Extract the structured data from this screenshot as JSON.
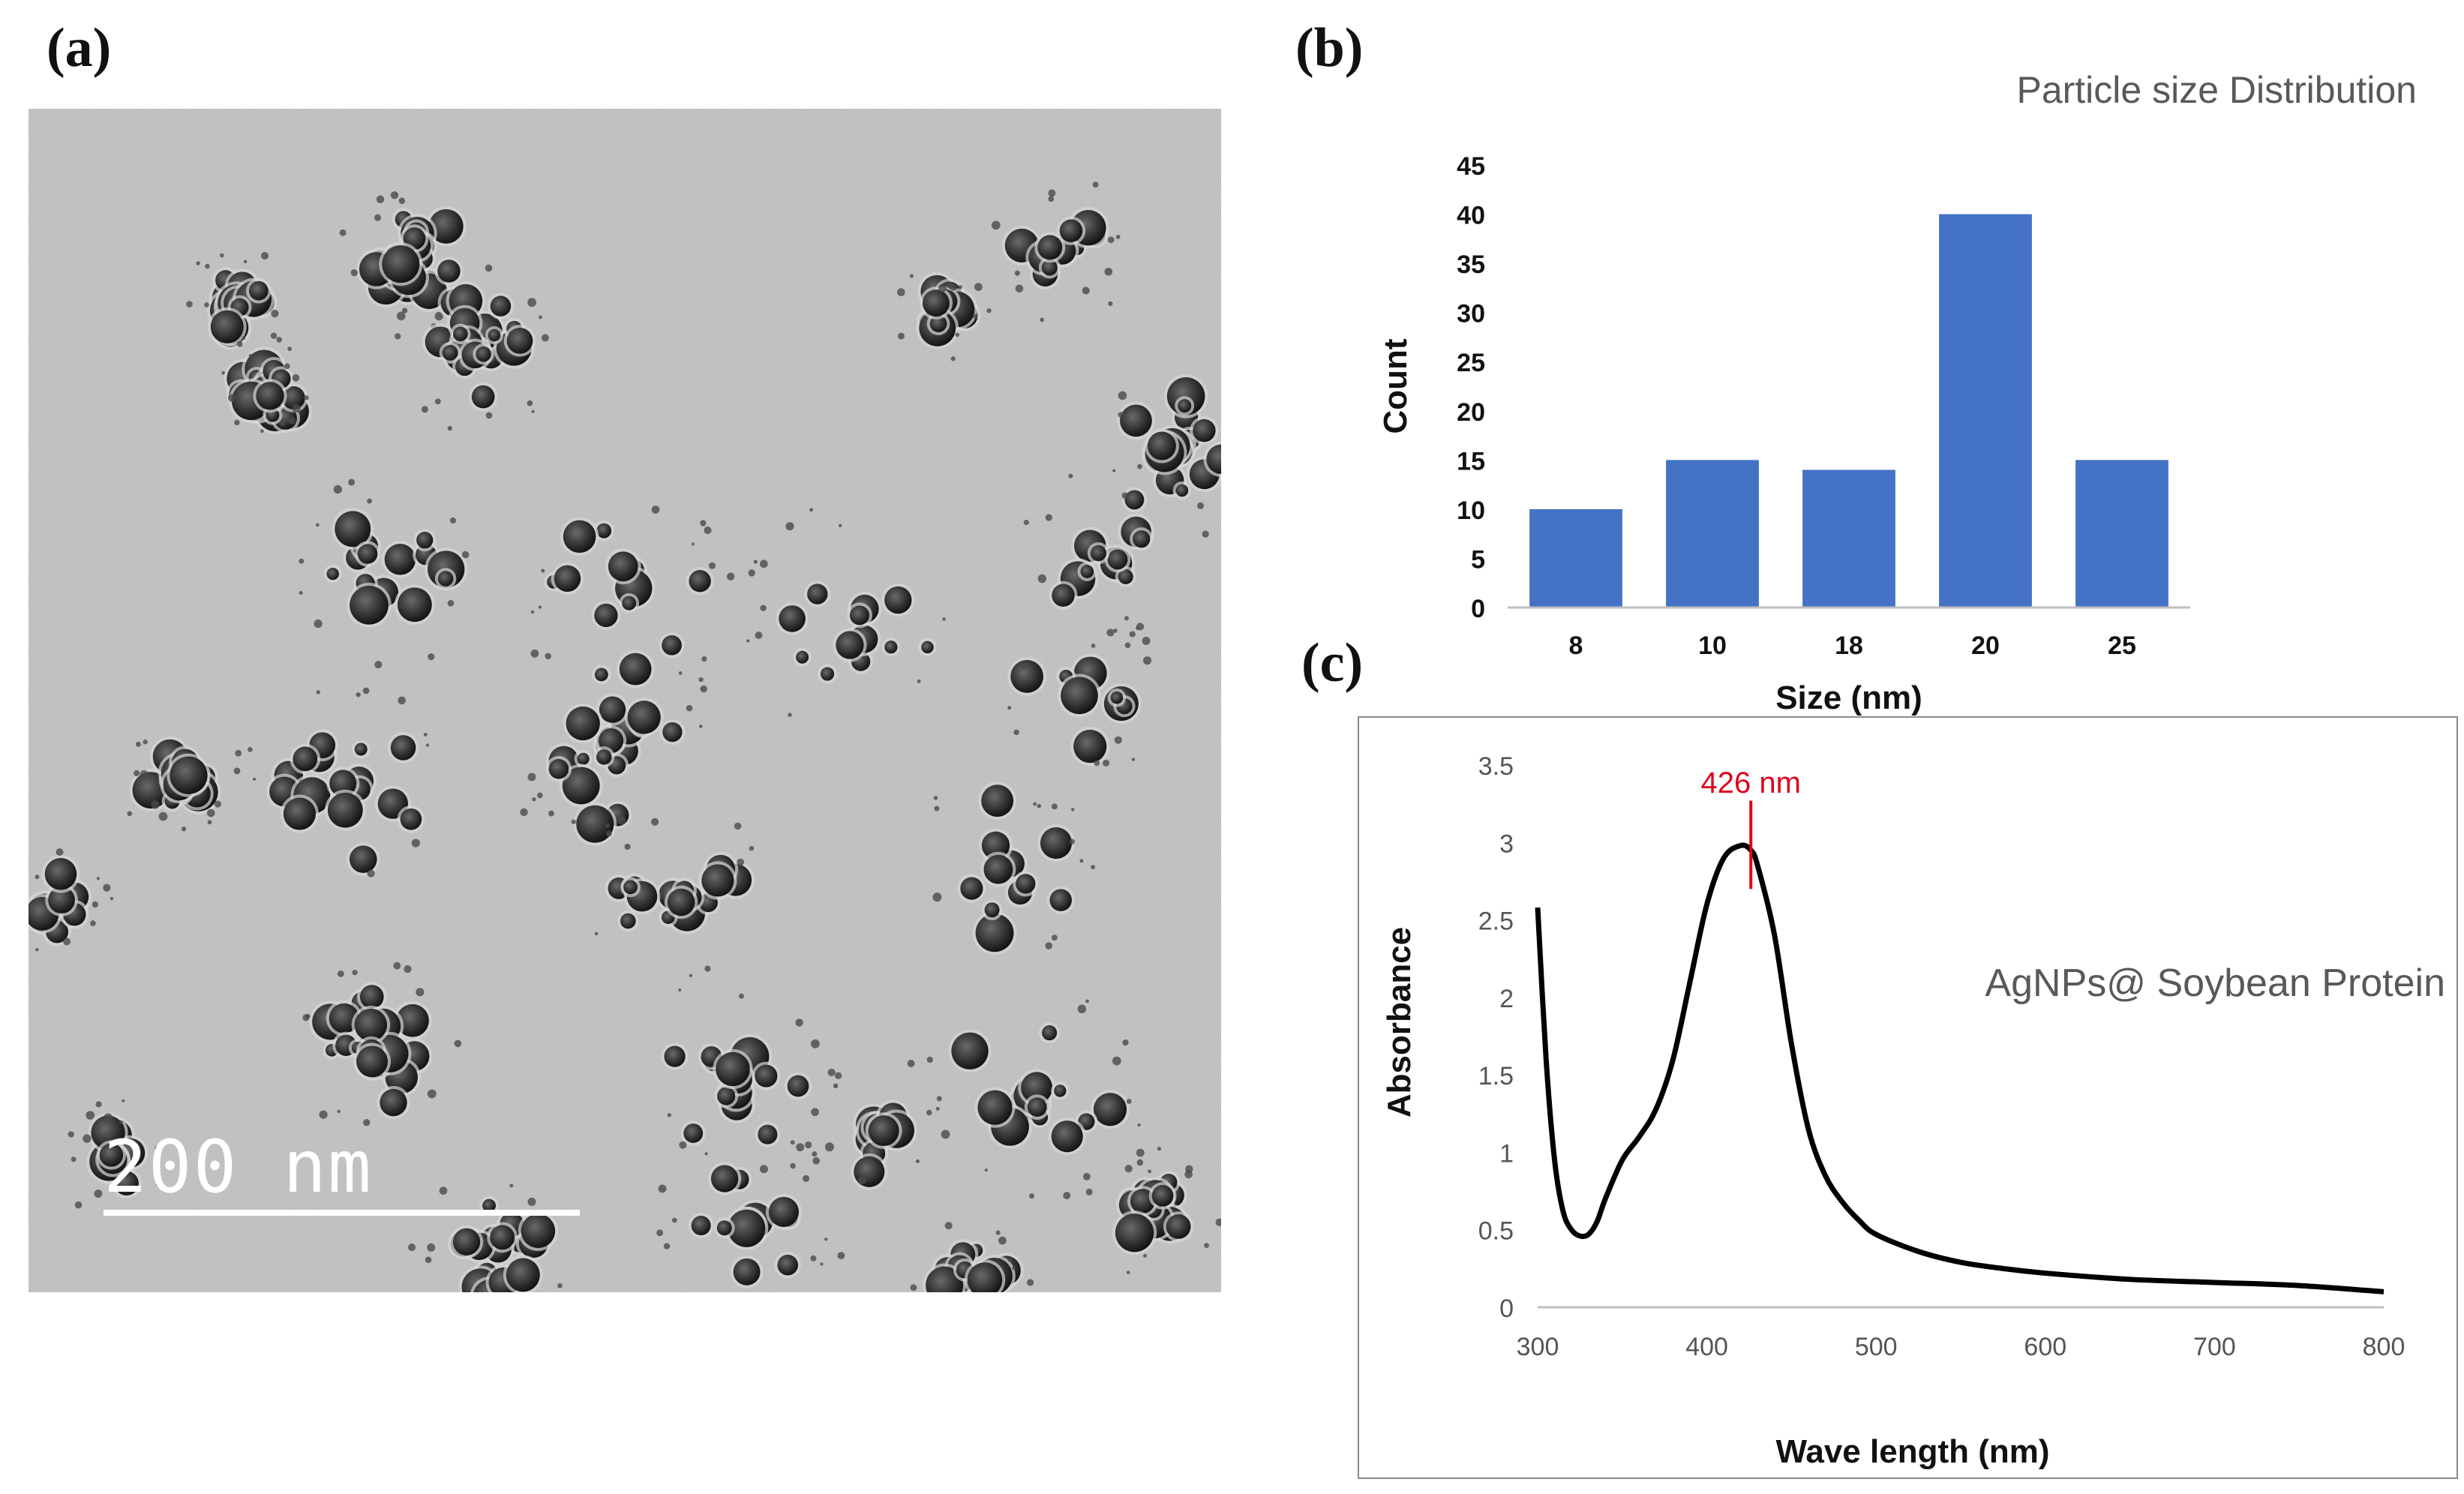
{
  "panels": {
    "a": {
      "label": "(a)",
      "scale_bar": "200 nm"
    },
    "b": {
      "label": "(b)"
    },
    "c": {
      "label": "(c)"
    }
  },
  "colors": {
    "bar": "#4472c4",
    "line": "#000000",
    "annotation": "#e0001b",
    "axis_text": "#555555"
  },
  "chart_data": [
    {
      "type": "bar",
      "title": "Particle size Distribution",
      "categories": [
        "8",
        "10",
        "18",
        "20",
        "25"
      ],
      "values": [
        10,
        15,
        14,
        40,
        15
      ],
      "xlabel": "Size (nm)",
      "ylabel": "Count",
      "ylim": [
        0,
        45
      ],
      "yticks": [
        "0",
        "5",
        "10",
        "15",
        "20",
        "25",
        "30",
        "35",
        "40",
        "45"
      ],
      "grid": false
    },
    {
      "type": "line",
      "title": "AgNPs@ Soybean Protein",
      "xlabel": "Wave length (nm)",
      "ylabel": "Absorbance",
      "xlim": [
        300,
        800
      ],
      "ylim": [
        0,
        3.5
      ],
      "xticks": [
        "300",
        "400",
        "500",
        "600",
        "700",
        "800"
      ],
      "yticks": [
        "0",
        "0.5",
        "1",
        "1.5",
        "2",
        "2.5",
        "3",
        "3.5"
      ],
      "series": [
        {
          "name": "AgNPs@ Soybean Protein",
          "x": [
            300,
            305,
            310,
            315,
            320,
            325,
            330,
            335,
            340,
            350,
            360,
            370,
            380,
            390,
            400,
            410,
            420,
            426,
            430,
            440,
            450,
            460,
            470,
            480,
            490,
            500,
            525,
            550,
            575,
            600,
            650,
            700,
            750,
            800
          ],
          "y": [
            2.58,
            1.6,
            0.95,
            0.62,
            0.5,
            0.46,
            0.47,
            0.55,
            0.7,
            0.95,
            1.1,
            1.28,
            1.6,
            2.1,
            2.6,
            2.9,
            2.98,
            2.95,
            2.85,
            2.4,
            1.7,
            1.15,
            0.85,
            0.68,
            0.56,
            0.47,
            0.36,
            0.29,
            0.25,
            0.22,
            0.18,
            0.16,
            0.14,
            0.1
          ]
        }
      ],
      "annotations": [
        {
          "x": 426,
          "label": "426 nm"
        }
      ]
    }
  ]
}
